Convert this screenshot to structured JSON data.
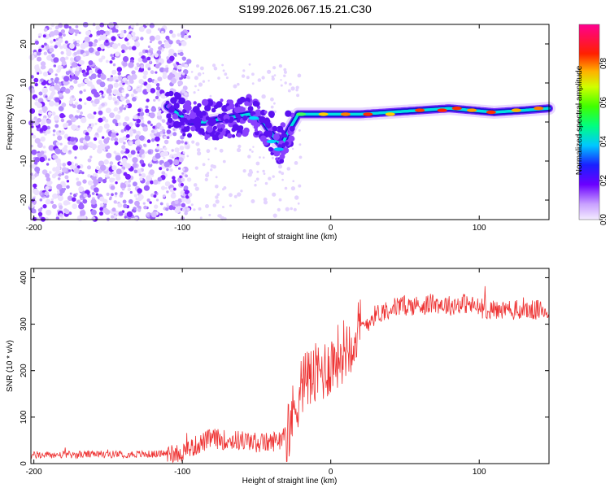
{
  "title": "S199.2026.067.15.21.C30",
  "spectrogram": {
    "type": "heatmap",
    "xlabel": "Height of straight line (km)",
    "ylabel": "Frequency (Hz)",
    "xlim": [
      -202,
      147
    ],
    "ylim": [
      -25,
      25
    ],
    "xticks": [
      -200,
      -100,
      0,
      100
    ],
    "yticks": [
      20,
      10,
      0,
      -10,
      -20
    ],
    "ridge_x": [
      -110,
      -95,
      -85,
      -70,
      -55,
      -45,
      -38,
      -33,
      -28,
      -22,
      -15,
      0,
      20,
      40,
      60,
      80,
      95,
      110,
      130,
      147
    ],
    "ridge_freq": [
      4,
      0,
      0,
      1,
      2,
      0,
      -4,
      -6,
      -2,
      2,
      2,
      2,
      2,
      2.5,
      3,
      3.5,
      3,
      2.5,
      3,
      3.5
    ]
  },
  "colorbar": {
    "label": "Normalized spectral amplitude",
    "ticks": [
      "0.0",
      "0.2",
      "0.4",
      "0.6",
      "0.8"
    ],
    "range": [
      0,
      1
    ]
  },
  "snr": {
    "type": "line",
    "xlabel": "Height of straight line (km)",
    "ylabel": "SNR (10 * v/v)",
    "xlim": [
      -202,
      147
    ],
    "ylim": [
      0,
      420
    ],
    "xticks": [
      -200,
      -100,
      0,
      100
    ],
    "yticks": [
      0,
      100,
      200,
      300,
      400
    ],
    "color": "#ee3333",
    "x": [
      -202,
      -150,
      -120,
      -100,
      -90,
      -80,
      -70,
      -60,
      -50,
      -40,
      -30,
      -25,
      -20,
      -15,
      -10,
      -5,
      0,
      10,
      20,
      30,
      40,
      50,
      60,
      70,
      80,
      90,
      100,
      110,
      120,
      130,
      147
    ],
    "snr": [
      18,
      20,
      20,
      25,
      40,
      55,
      50,
      50,
      45,
      45,
      65,
      110,
      170,
      180,
      190,
      200,
      215,
      250,
      290,
      320,
      335,
      340,
      340,
      345,
      340,
      345,
      335,
      330,
      330,
      330,
      330
    ]
  }
}
